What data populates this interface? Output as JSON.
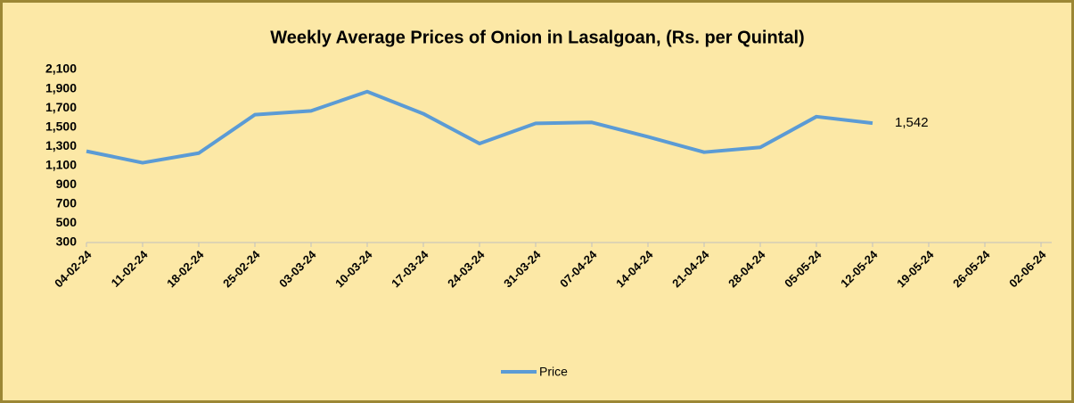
{
  "chart_data": {
    "type": "line",
    "title": "Weekly Average Prices of Onion in Lasalgoan, (Rs. per Quintal)",
    "categories": [
      "04-02-24",
      "11-02-24",
      "18-02-24",
      "25-02-24",
      "03-03-24",
      "10-03-24",
      "17-03-24",
      "24-03-24",
      "31-03-24",
      "07-04-24",
      "14-04-24",
      "21-04-24",
      "28-04-24",
      "05-05-24",
      "12-05-24",
      "19-05-24",
      "26-05-24",
      "02-06-24"
    ],
    "series": [
      {
        "name": "Price",
        "color": "#5b9bd5",
        "values": [
          1250,
          1130,
          1230,
          1630,
          1670,
          1870,
          1640,
          1330,
          1540,
          1550,
          1400,
          1240,
          1290,
          1610,
          1542,
          null,
          null,
          null
        ],
        "value_labels": [
          null,
          null,
          null,
          null,
          null,
          null,
          null,
          null,
          null,
          null,
          null,
          null,
          null,
          null,
          "1,542",
          null,
          null,
          null
        ]
      }
    ],
    "ylim": [
      300,
      2100
    ],
    "yticks": [
      300,
      500,
      700,
      900,
      {
        "value": 1100,
        "label": "1,100"
      },
      {
        "value": 1300,
        "label": "1,300"
      },
      {
        "value": 1500,
        "label": "1,500"
      },
      {
        "value": 1700,
        "label": "1,700"
      },
      {
        "value": 1900,
        "label": "1,900"
      },
      {
        "value": 2100,
        "label": "2,100"
      }
    ],
    "legend": "bottom"
  }
}
